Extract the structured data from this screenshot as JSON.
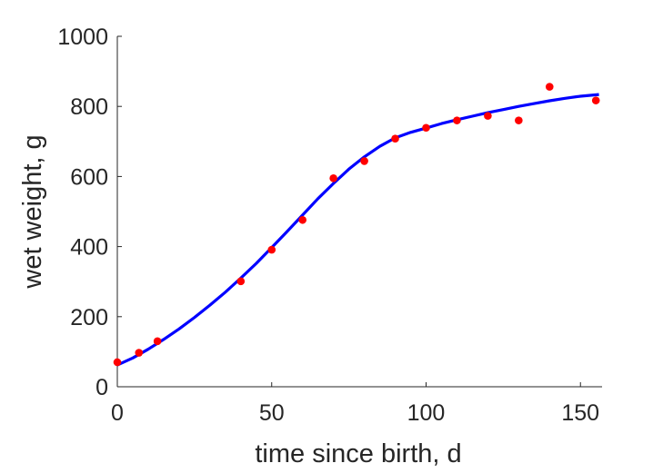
{
  "chart_data": {
    "type": "scatter",
    "title": "",
    "xlabel": "time since birth, d",
    "ylabel": "wet weight, g",
    "xlim": [
      0,
      157
    ],
    "ylim": [
      0,
      1000
    ],
    "x_ticks": [
      0,
      50,
      100,
      150
    ],
    "y_ticks": [
      0,
      200,
      400,
      600,
      800,
      1000
    ],
    "grid": false,
    "legend": "none",
    "series": [
      {
        "kind": "points",
        "color": "#ff0000",
        "x": [
          0,
          7,
          13,
          40,
          50,
          60,
          70,
          80,
          90,
          100,
          110,
          120,
          130,
          140,
          155
        ],
        "y": [
          70,
          97,
          130,
          301,
          391,
          476,
          595,
          644,
          708,
          739,
          760,
          773,
          760,
          856,
          817
        ]
      },
      {
        "kind": "line",
        "color": "#0000ff",
        "x": [
          0,
          5,
          10,
          15,
          20,
          25,
          30,
          35,
          40,
          45,
          50,
          55,
          60,
          65,
          70,
          75,
          80,
          85,
          90,
          95,
          100,
          105,
          110,
          115,
          120,
          125,
          130,
          135,
          140,
          145,
          150,
          156
        ],
        "y": [
          62,
          82,
          107,
          135,
          165,
          198,
          233,
          270,
          310,
          352,
          397,
          443,
          490,
          537,
          580,
          621,
          656,
          686,
          710,
          726,
          738,
          751,
          762,
          772,
          782,
          791,
          800,
          808,
          816,
          823,
          829,
          834
        ]
      }
    ]
  }
}
